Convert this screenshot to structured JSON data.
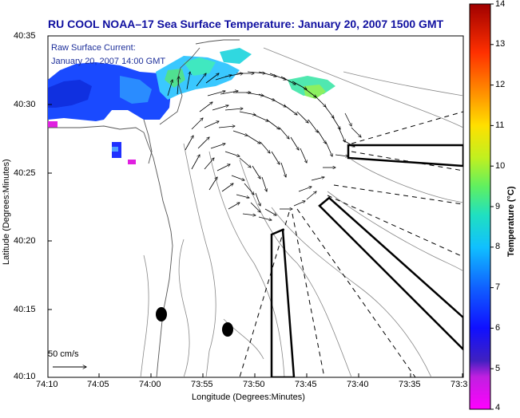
{
  "title": "RU COOL  NOAA–17  Sea Surface Temperature:  January 20, 2007 1500 GMT",
  "current_label_line1": "Raw Surface Current:",
  "current_label_line2": "January 20, 2007 14:00 GMT",
  "scale_label": "50 cm/s",
  "x_axis_label": "Longitude (Degrees:Minutes)",
  "y_axis_label": "Latitude (Degrees:Minutes)",
  "x_ticks": [
    "74:10",
    "74:05",
    "74:00",
    "73:55",
    "73:50",
    "73:45",
    "73:40",
    "73:35",
    "73:3"
  ],
  "y_ticks": [
    "40:35",
    "40:30",
    "40:25",
    "40:20",
    "40:15",
    "40:10"
  ],
  "colorbar": {
    "label": "Temperature (°C)",
    "ticks": [
      "14",
      "13",
      "12",
      "11",
      "10",
      "9",
      "8",
      "7",
      "6",
      "5",
      "4"
    ],
    "min": 4,
    "max": 14
  },
  "colors": {
    "title": "#1010a0",
    "annotation": "#1d2f9a"
  }
}
